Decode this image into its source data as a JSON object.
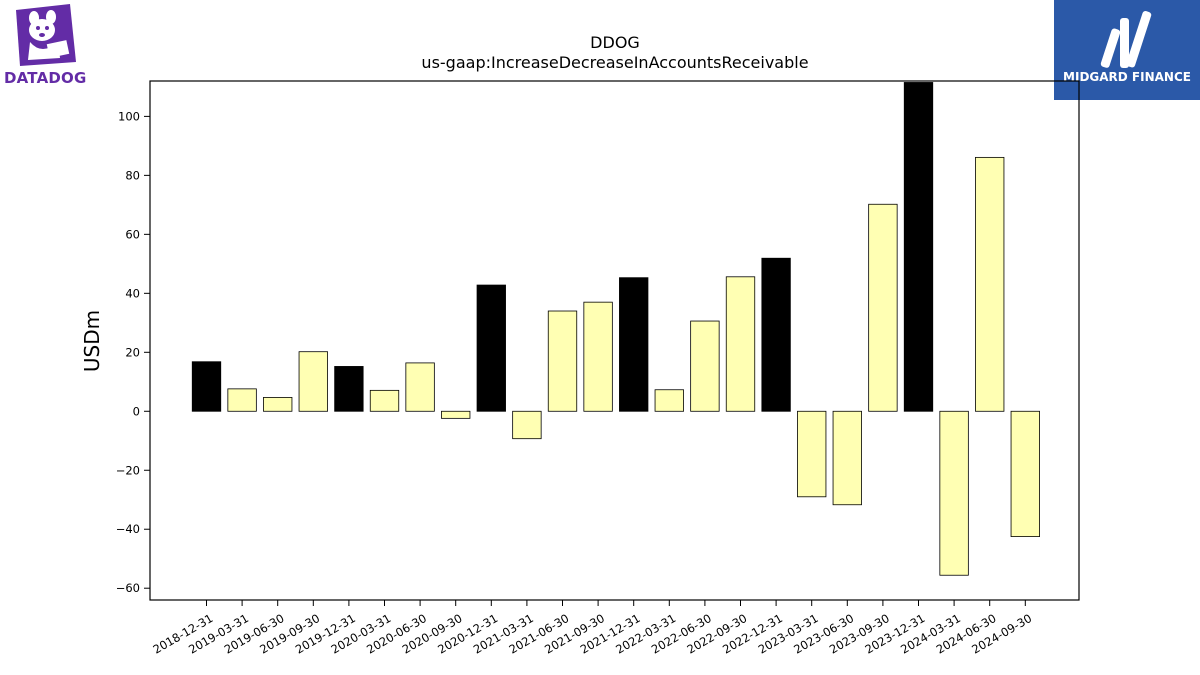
{
  "logos": {
    "left_text": "DATADOG",
    "right_text": "MIDGARD FINANCE"
  },
  "colors": {
    "positive_bar": "#ffffb3",
    "highlight_bar": "#000000",
    "left_logo": "#632ca6",
    "right_logo_bg": "#2b59a8"
  },
  "chart_data": {
    "type": "bar",
    "title": "DDOG",
    "subtitle": "us-gaap:IncreaseDecreaseInAccountsReceivable",
    "xlabel": "",
    "ylabel": "USDm",
    "ylim": [
      -64,
      112
    ],
    "yticks": [
      -60,
      -40,
      -20,
      0,
      20,
      40,
      60,
      80,
      100
    ],
    "grid": false,
    "categories": [
      "2018-12-31",
      "2019-03-31",
      "2019-06-30",
      "2019-09-30",
      "2019-12-31",
      "2020-03-31",
      "2020-06-30",
      "2020-09-30",
      "2020-12-31",
      "2021-03-31",
      "2021-06-30",
      "2021-09-30",
      "2021-12-31",
      "2022-03-31",
      "2022-06-30",
      "2022-09-30",
      "2022-12-31",
      "2023-03-31",
      "2023-06-30",
      "2023-09-30",
      "2023-12-31",
      "2024-03-31",
      "2024-06-30",
      "2024-09-30"
    ],
    "values": [
      16.8,
      7.6,
      4.7,
      20.2,
      15.2,
      7.1,
      16.4,
      -2.4,
      42.8,
      -9.3,
      34.0,
      37.0,
      45.3,
      7.3,
      30.6,
      45.6,
      51.9,
      -29.0,
      -31.7,
      70.2,
      111.5,
      -55.6,
      86.1,
      -42.5
    ],
    "highlight": [
      true,
      false,
      false,
      false,
      true,
      false,
      false,
      false,
      true,
      false,
      false,
      false,
      true,
      false,
      false,
      false,
      true,
      false,
      false,
      false,
      true,
      false,
      false,
      false
    ]
  }
}
